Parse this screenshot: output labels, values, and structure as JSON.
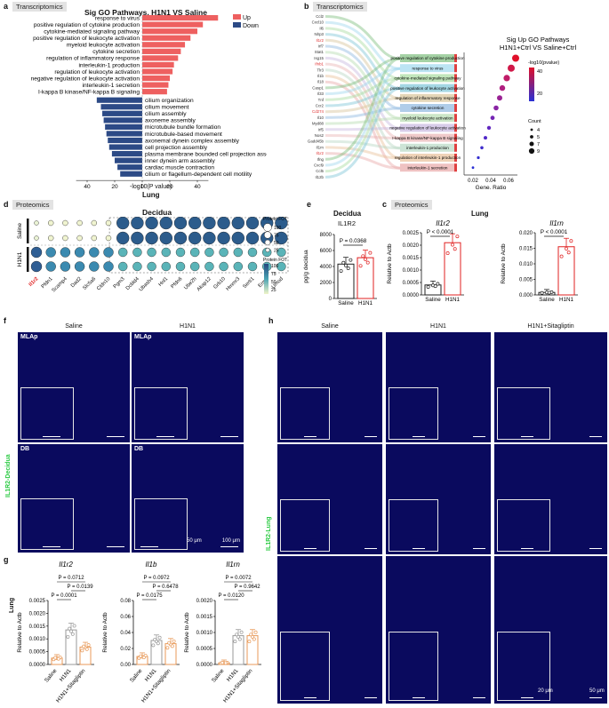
{
  "panel_a": {
    "letter": "a",
    "tag": "Transcriptomics",
    "title": "Sig GO Pathways, H1N1 VS Saline",
    "legend_up": "Up",
    "legend_down": "Down",
    "color_up": "#ee6060",
    "color_down": "#2c4a86",
    "xaxis_label": "-log10(P value)",
    "xaxis_sub": "Lung",
    "ticks": [
      "40",
      "20",
      "0",
      "20",
      "40"
    ],
    "up_terms": [
      "response to virus",
      "positive regulation of cytokine production",
      "cytokine-mediated signaling pathway",
      "positive regulation of leukocyte activation",
      "myeloid leukocyte activation",
      "cytokine secretion",
      "regulation of inflammatory response",
      "interleukin-1 production",
      "regulation of leukocyte activation",
      "negative regulation of leukocyte activation",
      "interleukin-1 secretion",
      "I-kappa B kinase/NF-kappa B signaling"
    ],
    "up_values": [
      55,
      44,
      40,
      35,
      31,
      28,
      26,
      23,
      22,
      20,
      19,
      18
    ],
    "down_terms": [
      "cilium organization",
      "cilium movement",
      "cilium assembly",
      "axoneme assembly",
      "microtubule bundle formation",
      "microtubule-based movement",
      "axonemal dynein complex assembly",
      "cell projection assembly",
      "plasma membrane bounded cell projection assembly",
      "inner dynein arm assembly",
      "cardiac muscle contraction",
      "cilium or flagellum-dependent cell motility"
    ],
    "down_values": [
      33,
      30,
      29,
      28,
      27,
      26,
      25,
      24,
      22,
      20,
      18,
      16
    ]
  },
  "panel_b": {
    "letter": "b",
    "tag": "Transcriptomics",
    "title1": "Sig Up GO Pathways",
    "title2": "H1N1+Ctrl VS Saline+Ctrl",
    "genes": [
      "Ccl2",
      "Cxcl10",
      "Il6",
      "Nlrp3",
      "Il1r2",
      "Irf7",
      "Stat1",
      "Isg15",
      "Ifnb1",
      "Tlr3",
      "Il1b",
      "Il18",
      "Casp1",
      "Il33",
      "Tnf",
      "Ccr2",
      "Cd274",
      "Il10",
      "Myd88",
      "Irf5",
      "Nos2",
      "Gadd45b",
      "Il1rn",
      "Il1r2",
      "Ifng",
      "Cxcl9",
      "Ccl5",
      "Il12b"
    ],
    "highlight_color": "#e03030",
    "pathways": [
      "positive regulation of cytokine production",
      "response to virus",
      "cytokine-mediated signaling pathway",
      "positive regulation of leukocyte activation",
      "regulation of inflammatory response",
      "cytokine secretion",
      "myeloid leukocyte activation",
      "negative regulation of leukocyte activation",
      "I-kappa B kinase/NF-kappa B signaling",
      "interleukin-1 production",
      "regulation of interleukin-1 production",
      "interleukin-1 secretion"
    ],
    "pathway_colors": [
      "#7fbf7f",
      "#9fd8ee",
      "#a8dca0",
      "#7fc6d8",
      "#d8c49a",
      "#8fb8e0",
      "#b6dcb0",
      "#c7b8e0",
      "#e8b4b4",
      "#b8d8c4",
      "#e8c09a",
      "#e8a8a8"
    ],
    "xaxis_label": "Gene. Ratio",
    "xticks": [
      "0.02",
      "0.04",
      "0.06"
    ],
    "legend_p_title": "-log10(pvalue)",
    "legend_p_ticks": [
      "40",
      "20"
    ],
    "legend_count_title": "Count",
    "legend_counts": [
      "4",
      "5",
      "7",
      "9"
    ]
  },
  "panel_d": {
    "letter": "d",
    "tag": "Proteomics",
    "title": "Decidua",
    "rows": [
      "Saline",
      "H1N1"
    ],
    "highlight": "Il1r2",
    "genes": [
      "Il1r2",
      "Pfdn1",
      "Scamp4",
      "Dad2",
      "Slc5a6",
      "Cldn10",
      "Pgm3",
      "Dcbld4",
      "Ubash4",
      "Hnl1",
      "Pfdn6",
      "Ube2h",
      "Akap12",
      "Grb10",
      "Hmmr3",
      "Serti1",
      "Erm4",
      "Umod"
    ],
    "legend_size_title": "Protein FOT",
    "legend_size_ticks": [
      "100",
      "75",
      "50",
      "25"
    ],
    "legend_color_title": "Protein FOT",
    "legend_color_ticks": [
      "100",
      "75",
      "50",
      "25"
    ]
  },
  "panel_e": {
    "letter": "e",
    "tag": "Proteomics",
    "title": "Decidua",
    "subtitle": "IL1R2",
    "ylabel": "pg/g decidua",
    "yticks": [
      "8000",
      "6000",
      "4000",
      "2000",
      "0"
    ],
    "pvalue": "P = 0.0368",
    "groups": [
      "Saline",
      "H1N1"
    ],
    "means": [
      4300,
      5100
    ],
    "ymax": 8000
  },
  "panel_c": {
    "letter": "c",
    "tag": "Proteomics",
    "title": "Lung",
    "left": {
      "gene": "Il1r2",
      "ylabel": "Relative to Actb",
      "yticks": [
        "0.0025",
        "0.0020",
        "0.0015",
        "0.0010",
        "0.0005",
        "0.0000"
      ],
      "pvalue": "P < 0.0001",
      "groups": [
        "Saline",
        "H1N1"
      ],
      "means": [
        0.0004,
        0.0021
      ],
      "ymax": 0.0025
    },
    "right": {
      "gene": "Il1rn",
      "ylabel": "Relative to Actb",
      "yticks": [
        "0.020",
        "0.015",
        "0.010",
        "0.005",
        "0.000"
      ],
      "pvalue": "P < 0.0001",
      "groups": [
        "Saline",
        "H1N1"
      ],
      "means": [
        0.0008,
        0.0155
      ],
      "ymax": 0.02
    }
  },
  "panel_f": {
    "letter": "f",
    "cols": [
      "Saline",
      "H1N1"
    ],
    "row_labels": [
      "MLAp",
      "DB"
    ],
    "side_label": "IL1R2-Decidua",
    "scale_small": "50 μm",
    "scale_large": "100 μm"
  },
  "panel_g": {
    "letter": "g",
    "row_label": "Lung",
    "ylabel": "Relative to Actb",
    "groups": [
      "Saline",
      "H1N1",
      "H1N1+Sitagliptin"
    ],
    "charts": [
      {
        "gene": "Il1r2",
        "yticks": [
          "0.0025",
          "0.0020",
          "0.0015",
          "0.0010",
          "0.0005",
          "0.0000"
        ],
        "ymax": 0.0025,
        "means": [
          0.00025,
          0.00135,
          0.00068
        ],
        "p_top": "P = 0.0712",
        "p_mid": "P = 0.0139",
        "p_low": "P = 0.0001"
      },
      {
        "gene": "Il1b",
        "yticks": [
          "0.08",
          "0.06",
          "0.04",
          "0.02",
          "0.00"
        ],
        "ymax": 0.08,
        "means": [
          0.01,
          0.03,
          0.026
        ],
        "p_top": "P = 0.0972",
        "p_mid": "P = 0.6478",
        "p_low": "P = 0.0175"
      },
      {
        "gene": "Il1rn",
        "yticks": [
          "0.0020",
          "0.0015",
          "0.0010",
          "0.0005",
          "0.0000"
        ],
        "ymax": 0.002,
        "means": [
          5e-05,
          0.0009,
          0.0009
        ],
        "p_top": "P = 0.0072",
        "p_mid": "P = 0.9642",
        "p_low": "P = 0.0120"
      }
    ]
  },
  "panel_h": {
    "letter": "h",
    "cols": [
      "Saline",
      "H1N1",
      "H1N1+Sitagliptin"
    ],
    "side_label": "IL1R2-Lung",
    "scale_small": "20 μm",
    "scale_large": "50 μm"
  }
}
